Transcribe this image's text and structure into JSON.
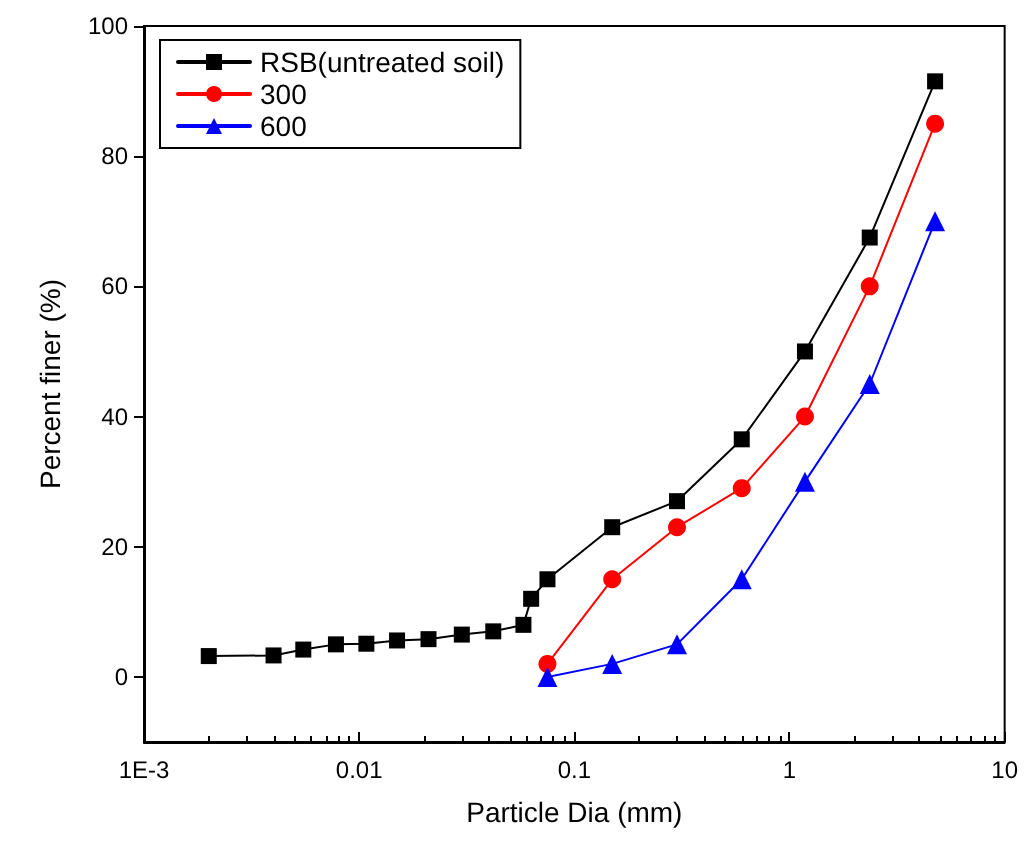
{
  "chart_data": {
    "type": "line",
    "xlabel": "Particle Dia (mm)",
    "ylabel": "Percent finer (%)",
    "log": "x",
    "xlim": [
      0.001,
      10
    ],
    "xticks": [
      {
        "value": 0.001,
        "label": "1E-3"
      },
      0.01,
      0.1,
      1,
      10
    ],
    "ylim": [
      -10,
      100
    ],
    "yticks": [
      0,
      20,
      40,
      60,
      80,
      100
    ],
    "legend": "top left",
    "grid": false,
    "series": [
      {
        "name": "RSB(untreated soil)",
        "color": "#000000",
        "marker": "square",
        "x": [
          0.002,
          0.004,
          0.0055,
          0.0078,
          0.0108,
          0.015,
          0.021,
          0.03,
          0.042,
          0.058,
          0.063,
          0.075,
          0.15,
          0.3,
          0.6,
          1.18,
          2.36,
          4.75
        ],
        "values": [
          3.2,
          3.3,
          4.2,
          5,
          5.1,
          5.6,
          5.8,
          6.5,
          7,
          8,
          12,
          15,
          23,
          27,
          36.5,
          50,
          67.5,
          91.5
        ]
      },
      {
        "name": "300",
        "color": "#ff0000",
        "marker": "circle",
        "x": [
          0.075,
          0.15,
          0.3,
          0.6,
          1.18,
          2.36,
          4.75
        ],
        "values": [
          2,
          15,
          23,
          29,
          40,
          60,
          85
        ]
      },
      {
        "name": "600",
        "color": "#0000ff",
        "marker": "triangle",
        "x": [
          0.075,
          0.15,
          0.3,
          0.6,
          1.18,
          2.36,
          4.75
        ],
        "values": [
          0,
          2,
          5,
          15,
          30,
          45,
          70
        ]
      }
    ]
  }
}
